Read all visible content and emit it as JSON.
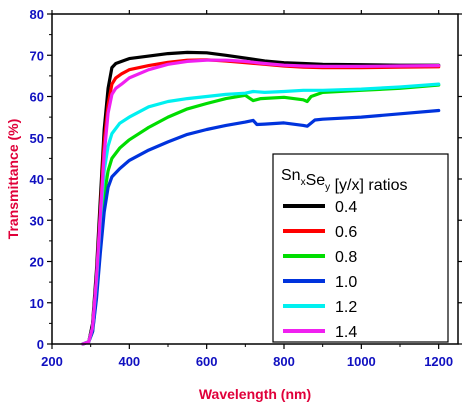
{
  "chart_data": {
    "type": "line",
    "xlabel": "Wavelength (nm)",
    "ylabel": "Transmittance (%)",
    "xlim": [
      200,
      1250
    ],
    "ylim": [
      0,
      80
    ],
    "xticks": [
      200,
      400,
      600,
      800,
      1000,
      1200
    ],
    "yticks": [
      0,
      10,
      20,
      30,
      40,
      50,
      60,
      70,
      80
    ],
    "grid": false,
    "legend": {
      "placement": "bottom-right",
      "title_parts": [
        "Sn",
        "x",
        "Se",
        "y",
        " [y/x] ratios"
      ]
    },
    "series": [
      {
        "name": "0.4",
        "color": "#000000",
        "points": [
          [
            280,
            0
          ],
          [
            295,
            0.5
          ],
          [
            305,
            5
          ],
          [
            315,
            18
          ],
          [
            325,
            35
          ],
          [
            335,
            52
          ],
          [
            345,
            62
          ],
          [
            355,
            67
          ],
          [
            365,
            68
          ],
          [
            380,
            68.5
          ],
          [
            400,
            69.2
          ],
          [
            450,
            69.8
          ],
          [
            500,
            70.4
          ],
          [
            550,
            70.7
          ],
          [
            600,
            70.6
          ],
          [
            650,
            70
          ],
          [
            700,
            69.3
          ],
          [
            750,
            68.6
          ],
          [
            800,
            68.2
          ],
          [
            850,
            68
          ],
          [
            900,
            67.8
          ],
          [
            1000,
            67.7
          ],
          [
            1100,
            67.6
          ],
          [
            1200,
            67.6
          ]
        ]
      },
      {
        "name": "0.6",
        "color": "#ff0000",
        "points": [
          [
            280,
            0
          ],
          [
            295,
            0.5
          ],
          [
            305,
            4
          ],
          [
            315,
            16
          ],
          [
            325,
            32
          ],
          [
            335,
            49
          ],
          [
            345,
            58
          ],
          [
            355,
            63
          ],
          [
            365,
            64.5
          ],
          [
            380,
            65.5
          ],
          [
            400,
            66.5
          ],
          [
            450,
            67.5
          ],
          [
            500,
            68.3
          ],
          [
            550,
            68.8
          ],
          [
            600,
            68.9
          ],
          [
            650,
            68.6
          ],
          [
            700,
            68.2
          ],
          [
            750,
            67.8
          ],
          [
            800,
            67.4
          ],
          [
            850,
            67.1
          ],
          [
            900,
            67
          ],
          [
            1000,
            67
          ],
          [
            1100,
            67.1
          ],
          [
            1200,
            67.2
          ]
        ]
      },
      {
        "name": "0.8",
        "color": "#00dd00",
        "points": [
          [
            280,
            0
          ],
          [
            295,
            0.5
          ],
          [
            305,
            3
          ],
          [
            315,
            12
          ],
          [
            325,
            25
          ],
          [
            335,
            36
          ],
          [
            345,
            42
          ],
          [
            355,
            45
          ],
          [
            375,
            47.5
          ],
          [
            400,
            49.5
          ],
          [
            450,
            52.5
          ],
          [
            500,
            55
          ],
          [
            550,
            57
          ],
          [
            600,
            58.3
          ],
          [
            650,
            59.5
          ],
          [
            700,
            60.3
          ],
          [
            720,
            59
          ],
          [
            740,
            59.5
          ],
          [
            800,
            59.8
          ],
          [
            850,
            59.2
          ],
          [
            860,
            58.8
          ],
          [
            870,
            60
          ],
          [
            900,
            61
          ],
          [
            1000,
            61.5
          ],
          [
            1100,
            62
          ],
          [
            1200,
            62.8
          ]
        ]
      },
      {
        "name": "1.0",
        "color": "#0033dd",
        "points": [
          [
            280,
            0
          ],
          [
            295,
            0.5
          ],
          [
            305,
            3
          ],
          [
            315,
            11
          ],
          [
            325,
            22
          ],
          [
            335,
            32
          ],
          [
            345,
            38
          ],
          [
            355,
            40.5
          ],
          [
            375,
            42.5
          ],
          [
            400,
            44.5
          ],
          [
            450,
            47
          ],
          [
            500,
            49
          ],
          [
            550,
            50.8
          ],
          [
            600,
            52
          ],
          [
            650,
            53
          ],
          [
            700,
            53.8
          ],
          [
            720,
            54.2
          ],
          [
            730,
            53.2
          ],
          [
            750,
            53.3
          ],
          [
            800,
            53.6
          ],
          [
            850,
            53
          ],
          [
            860,
            52.8
          ],
          [
            880,
            54.3
          ],
          [
            900,
            54.5
          ],
          [
            1000,
            55
          ],
          [
            1100,
            55.8
          ],
          [
            1200,
            56.6
          ]
        ]
      },
      {
        "name": "1.2",
        "color": "#00f0f0",
        "points": [
          [
            280,
            0
          ],
          [
            295,
            0.5
          ],
          [
            305,
            4
          ],
          [
            315,
            15
          ],
          [
            325,
            30
          ],
          [
            335,
            42
          ],
          [
            345,
            48
          ],
          [
            355,
            51
          ],
          [
            375,
            53.5
          ],
          [
            400,
            55
          ],
          [
            450,
            57.5
          ],
          [
            500,
            58.8
          ],
          [
            550,
            59.5
          ],
          [
            600,
            60
          ],
          [
            650,
            60.5
          ],
          [
            700,
            60.8
          ],
          [
            720,
            61.2
          ],
          [
            750,
            61
          ],
          [
            800,
            61.2
          ],
          [
            850,
            61.5
          ],
          [
            900,
            61.5
          ],
          [
            1000,
            61.8
          ],
          [
            1100,
            62.3
          ],
          [
            1200,
            63
          ]
        ]
      },
      {
        "name": "1.4",
        "color": "#f020f0",
        "points": [
          [
            280,
            0
          ],
          [
            295,
            0.5
          ],
          [
            305,
            4
          ],
          [
            315,
            16
          ],
          [
            325,
            31
          ],
          [
            335,
            46
          ],
          [
            345,
            56
          ],
          [
            355,
            60.5
          ],
          [
            365,
            62
          ],
          [
            380,
            63
          ],
          [
            400,
            64.5
          ],
          [
            450,
            66.5
          ],
          [
            500,
            67.8
          ],
          [
            550,
            68.5
          ],
          [
            600,
            68.8
          ],
          [
            650,
            68.8
          ],
          [
            700,
            68.5
          ],
          [
            750,
            68
          ],
          [
            800,
            67.6
          ],
          [
            850,
            67.4
          ],
          [
            900,
            67.3
          ],
          [
            1000,
            67.3
          ],
          [
            1100,
            67.4
          ],
          [
            1200,
            67.5
          ]
        ]
      }
    ]
  }
}
